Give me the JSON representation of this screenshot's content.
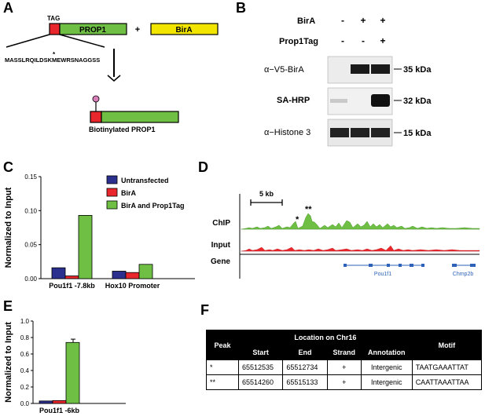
{
  "panels": {
    "A": "A",
    "B": "B",
    "C": "C",
    "D": "D",
    "E": "E",
    "F": "F"
  },
  "panelA": {
    "tag_label": "TAG",
    "prop1_label": "PROP1",
    "plus": "+",
    "bira_label": "BirA",
    "star": "*",
    "sequence": "MASSLRQILDSKMEWRSNAGGSS",
    "product_label": "Biotinylated PROP1",
    "colors": {
      "tag": "#e8262b",
      "prop1": "#6fbf44",
      "bira": "#f2e600",
      "biotin": "#d97fb8"
    }
  },
  "panelB": {
    "row_labels": [
      "BirA",
      "Prop1Tag"
    ],
    "bira_signs": [
      "-",
      "+",
      "+"
    ],
    "prop1tag_signs": [
      "-",
      "-",
      "+"
    ],
    "blots": [
      {
        "name": "α−V5-BirA",
        "kda": "35 kDa"
      },
      {
        "name": "SA-HRP",
        "kda": "32 kDa"
      },
      {
        "name": "α−Histone 3",
        "kda": "15 kDa"
      }
    ]
  },
  "panelD": {
    "scale_label": "5 kb",
    "stars1": "*",
    "stars2": "**",
    "track_labels": [
      "ChIP",
      "Input",
      "Gene"
    ],
    "gene1": "Pou1f1",
    "gene2": "Chmp2b",
    "colors": {
      "chip": "#6fbf44",
      "input": "#e8262b",
      "gene": "#2e62b8"
    }
  },
  "panelF": {
    "headers": {
      "peak": "Peak",
      "location": "Location on Chr16",
      "start": "Start",
      "end": "End",
      "strand": "Strand",
      "annotation": "Annotation",
      "motif": "Motif"
    },
    "rows": [
      {
        "peak": "*",
        "start": "65512535",
        "end": "65512734",
        "strand": "+",
        "annotation": "Intergenic",
        "motif": "TAATGAAATTAT"
      },
      {
        "peak": "**",
        "start": "65514260",
        "end": "65515133",
        "strand": "+",
        "annotation": "Intergenic",
        "motif": "CAATTAAATTAA"
      }
    ]
  },
  "chart_data": [
    {
      "type": "bar",
      "panel": "C",
      "ylabel": "Normalized to Input",
      "categories": [
        "Pou1f1 -7.8kb",
        "Hox10 Promoter"
      ],
      "ylim": [
        0,
        0.15
      ],
      "yticks": [
        "0.00",
        "0.05",
        "0.10",
        "0.15"
      ],
      "legend_position": "top-right",
      "series": [
        {
          "name": "Untransfected",
          "color": "#2b2f8e",
          "values": [
            0.016,
            0.011
          ]
        },
        {
          "name": "BirA",
          "color": "#e8262b",
          "values": [
            0.004,
            0.009
          ]
        },
        {
          "name": "BirA and Prop1Tag",
          "color": "#6fbf44",
          "values": [
            0.093,
            0.021
          ]
        }
      ]
    },
    {
      "type": "bar",
      "panel": "E",
      "ylabel": "Normalized to Input",
      "categories": [
        "Pou1f1 -6kb"
      ],
      "ylim": [
        0,
        1.0
      ],
      "yticks": [
        "0.0",
        "0.2",
        "0.4",
        "0.6",
        "0.8",
        "1.0"
      ],
      "series": [
        {
          "name": "Untransfected",
          "color": "#2b2f8e",
          "values": [
            0.03
          ]
        },
        {
          "name": "BirA",
          "color": "#e8262b",
          "values": [
            0.035
          ]
        },
        {
          "name": "BirA and Prop1Tag",
          "color": "#6fbf44",
          "values": [
            0.74
          ]
        }
      ]
    }
  ]
}
